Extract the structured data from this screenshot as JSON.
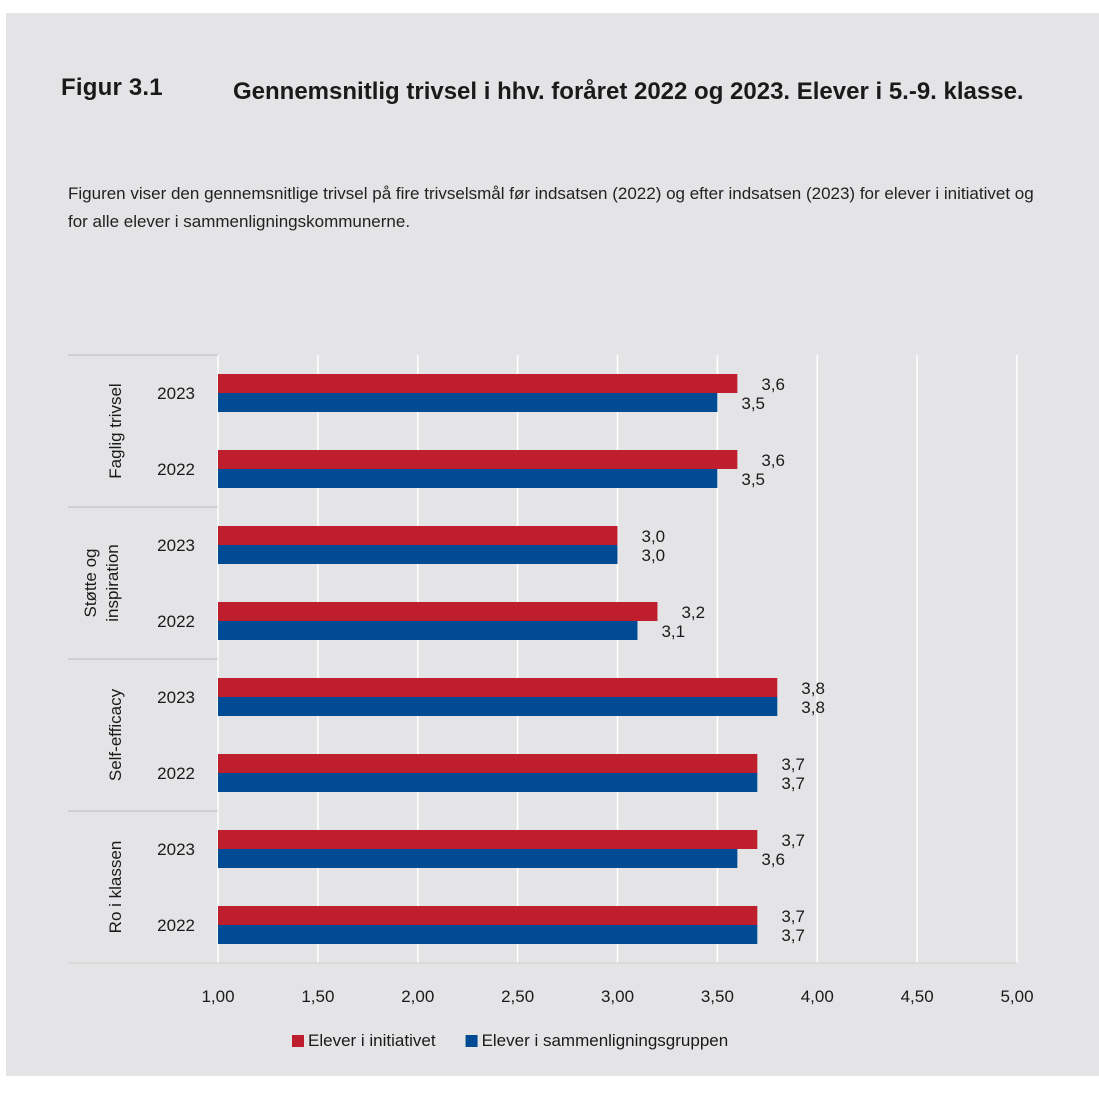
{
  "figure": {
    "label": "Figur 3.1",
    "title": "Gennemsnitlig trivsel i hhv. foråret 2022 og 2023. Elever i 5.-9. klasse.",
    "description": "Figuren viser den gennemsnitlige trivsel på fire trivselsmål før indsatsen (2022) og efter indsatsen (2023) for elever i initiativet og for alle elever i sammenligningskommunerne."
  },
  "chart_data": {
    "type": "bar",
    "orientation": "horizontal",
    "xlim": [
      1.0,
      5.0
    ],
    "x_ticks": [
      "1,00",
      "1,50",
      "2,00",
      "2,50",
      "3,00",
      "3,50",
      "4,00",
      "4,50",
      "5,00"
    ],
    "grid": "vertical",
    "legend_position": "bottom",
    "groups": [
      {
        "label": [
          "Faglig trivsel"
        ],
        "years": [
          "2023",
          "2022"
        ]
      },
      {
        "label": [
          "Støtte og",
          "inspiration"
        ],
        "years": [
          "2023",
          "2022"
        ]
      },
      {
        "label": [
          "Self-efficacy"
        ],
        "years": [
          "2023",
          "2022"
        ]
      },
      {
        "label": [
          "Ro i klassen"
        ],
        "years": [
          "2023",
          "2022"
        ]
      }
    ],
    "series": [
      {
        "name": "Elever i initiativet",
        "color": "#be1e2d",
        "values": [
          3.6,
          3.6,
          3.0,
          3.2,
          3.8,
          3.7,
          3.7,
          3.7
        ],
        "labels": [
          "3,6",
          "3,6",
          "3,0",
          "3,2",
          "3,8",
          "3,7",
          "3,7",
          "3,7"
        ]
      },
      {
        "name": "Elever i sammenligningsgruppen",
        "color": "#004b93",
        "values": [
          3.5,
          3.5,
          3.0,
          3.1,
          3.8,
          3.7,
          3.6,
          3.7
        ],
        "labels": [
          "3,5",
          "3,5",
          "3,0",
          "3,1",
          "3,8",
          "3,7",
          "3,6",
          "3,7"
        ]
      }
    ]
  }
}
